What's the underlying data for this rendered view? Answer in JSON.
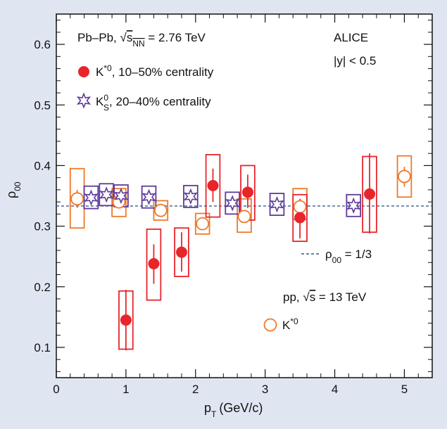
{
  "chart_data": {
    "type": "scatter",
    "xlabel": "p",
    "xlabel_sub": "T",
    "xlabel_unit": "(GeV/c)",
    "ylabel": "ρ",
    "ylabel_sub": "00",
    "xlim": [
      0,
      5.4
    ],
    "ylim": [
      0.05,
      0.65
    ],
    "x_ticks": [
      0,
      1,
      2,
      3,
      4,
      5
    ],
    "x_tick_labels": [
      "0",
      "1",
      "2",
      "3",
      "4",
      "5"
    ],
    "y_ticks": [
      0.1,
      0.2,
      0.3,
      0.4,
      0.5,
      0.6
    ],
    "y_tick_labels": [
      "0.1",
      "0.2",
      "0.3",
      "0.4",
      "0.5",
      "0.6"
    ],
    "reference_line": {
      "value": 0.3333,
      "label": "ρ",
      "label_sub": "00",
      "label_rest": " = 1/3",
      "color": "#3a5a88"
    },
    "annotations": {
      "pbpb_a": "Pb–Pb, ",
      "pbpb_sqrt": "√",
      "pbpb_s": "s",
      "pbpb_sub": "NN",
      "pbpb_b": " = 2.76 TeV",
      "alice": "ALICE",
      "rapidity": "|y| < 0.5",
      "pp_a": "pp, ",
      "pp_sqrt": "√",
      "pp_s": "s",
      "pp_b": " = 13 TeV"
    },
    "series": [
      {
        "name": "K*0 Pb-Pb",
        "legend_main": "K",
        "legend_sup": "*0",
        "legend_rest": ", 10–50% centrality",
        "marker": "filled-circle",
        "color": "#e8252b",
        "points": [
          {
            "x": 1.0,
            "y": 0.145,
            "stat": [
              0.095,
              0.195
            ],
            "sys": [
              0.097,
              0.193
            ],
            "sys_w": 0.1
          },
          {
            "x": 1.4,
            "y": 0.238,
            "stat": [
              0.205,
              0.27
            ],
            "sys": [
              0.178,
              0.295
            ],
            "sys_w": 0.1
          },
          {
            "x": 1.8,
            "y": 0.257,
            "stat": [
              0.225,
              0.29
            ],
            "sys": [
              0.217,
              0.297
            ],
            "sys_w": 0.1
          },
          {
            "x": 2.25,
            "y": 0.367,
            "stat": [
              0.34,
              0.395
            ],
            "sys": [
              0.315,
              0.418
            ],
            "sys_w": 0.1
          },
          {
            "x": 2.75,
            "y": 0.356,
            "stat": [
              0.33,
              0.385
            ],
            "sys": [
              0.31,
              0.4
            ],
            "sys_w": 0.1
          },
          {
            "x": 3.5,
            "y": 0.314,
            "stat": [
              0.28,
              0.345
            ],
            "sys": [
              0.275,
              0.352
            ],
            "sys_w": 0.1
          },
          {
            "x": 4.5,
            "y": 0.353,
            "stat": [
              0.288,
              0.42
            ],
            "sys": [
              0.29,
              0.415
            ],
            "sys_w": 0.1
          }
        ]
      },
      {
        "name": "K0S Pb-Pb",
        "legend_main": "K",
        "legend_sup": "0",
        "legend_sub": "S",
        "legend_rest": ", 20–40% centrality",
        "marker": "open-star",
        "color": "#5e3a9a",
        "points": [
          {
            "x": 0.5,
            "y": 0.347,
            "stat": [
              0.337,
              0.357
            ],
            "sys": [
              0.329,
              0.366
            ],
            "sys_w": 0.1
          },
          {
            "x": 0.72,
            "y": 0.352,
            "stat": [
              0.342,
              0.362
            ],
            "sys": [
              0.334,
              0.37
            ],
            "sys_w": 0.1
          },
          {
            "x": 0.93,
            "y": 0.35,
            "stat": [
              0.34,
              0.36
            ],
            "sys": [
              0.332,
              0.368
            ],
            "sys_w": 0.1
          },
          {
            "x": 1.33,
            "y": 0.348,
            "stat": [
              0.338,
              0.358
            ],
            "sys": [
              0.33,
              0.366
            ],
            "sys_w": 0.1
          },
          {
            "x": 1.93,
            "y": 0.349,
            "stat": [
              0.339,
              0.359
            ],
            "sys": [
              0.331,
              0.367
            ],
            "sys_w": 0.1
          },
          {
            "x": 2.53,
            "y": 0.338,
            "stat": [
              0.328,
              0.348
            ],
            "sys": [
              0.32,
              0.356
            ],
            "sys_w": 0.1
          },
          {
            "x": 3.17,
            "y": 0.336,
            "stat": [
              0.326,
              0.346
            ],
            "sys": [
              0.318,
              0.354
            ],
            "sys_w": 0.1
          },
          {
            "x": 4.27,
            "y": 0.334,
            "stat": [
              0.324,
              0.344
            ],
            "sys": [
              0.316,
              0.352
            ],
            "sys_w": 0.1
          }
        ]
      },
      {
        "name": "K*0 pp",
        "legend_main": "K",
        "legend_sup": "*0",
        "legend_rest": "",
        "marker": "open-circle",
        "color": "#ee7a2a",
        "points": [
          {
            "x": 0.3,
            "y": 0.345,
            "stat": [
              0.33,
              0.36
            ],
            "sys": [
              0.297,
              0.395
            ],
            "sys_w": 0.1
          },
          {
            "x": 0.9,
            "y": 0.34,
            "stat": [
              0.33,
              0.35
            ],
            "sys": [
              0.316,
              0.362
            ],
            "sys_w": 0.1
          },
          {
            "x": 1.5,
            "y": 0.326,
            "stat": [
              0.316,
              0.336
            ],
            "sys": [
              0.31,
              0.342
            ],
            "sys_w": 0.1
          },
          {
            "x": 2.1,
            "y": 0.304,
            "stat": [
              0.294,
              0.314
            ],
            "sys": [
              0.287,
              0.321
            ],
            "sys_w": 0.1
          },
          {
            "x": 2.7,
            "y": 0.316,
            "stat": [
              0.306,
              0.326
            ],
            "sys": [
              0.29,
              0.345
            ],
            "sys_w": 0.1
          },
          {
            "x": 3.5,
            "y": 0.332,
            "stat": [
              0.322,
              0.342
            ],
            "sys": [
              0.311,
              0.362
            ],
            "sys_w": 0.1
          },
          {
            "x": 5.0,
            "y": 0.382,
            "stat": [
              0.365,
              0.398
            ],
            "sys": [
              0.348,
              0.416
            ],
            "sys_w": 0.1
          }
        ]
      }
    ]
  }
}
